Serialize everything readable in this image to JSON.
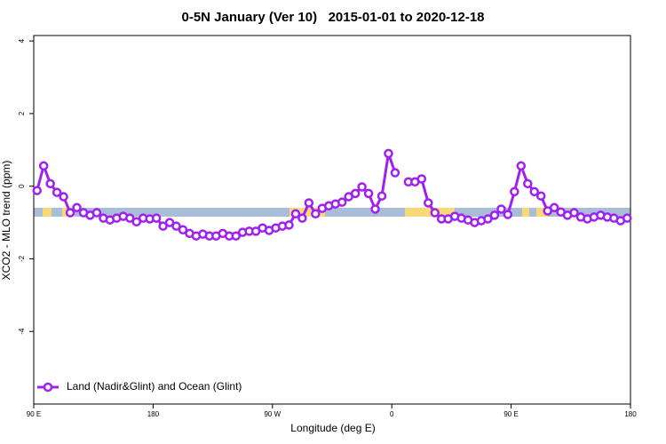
{
  "chart_data": {
    "type": "line",
    "title": "0-5N January (Ver 10)   2015-01-01 to 2020-12-18",
    "xlabel": "Longitude (deg E)",
    "ylabel": "XCO2 - MLO trend (ppm)",
    "x": [
      92.5,
      97.5,
      102.5,
      107.5,
      112.5,
      117.5,
      122.5,
      127.5,
      132.5,
      137.5,
      142.5,
      147.5,
      152.5,
      157.5,
      162.5,
      167.5,
      172.5,
      177.5,
      182.5,
      187.5,
      192.5,
      197.5,
      202.5,
      207.5,
      212.5,
      217.5,
      222.5,
      227.5,
      232.5,
      237.5,
      242.5,
      247.5,
      252.5,
      257.5,
      262.5,
      267.5,
      272.5,
      277.5,
      282.5,
      287.5,
      292.5,
      297.5,
      302.5,
      307.5,
      312.5,
      317.5,
      322.5,
      327.5,
      332.5,
      337.5,
      342.5,
      347.5,
      352.5,
      357.5,
      362.5,
      367.5,
      372.5,
      377.5,
      382.5,
      387.5,
      392.5,
      397.5,
      402.5,
      407.5,
      412.5,
      417.5,
      422.5,
      427.5,
      432.5,
      437.5,
      442.5,
      447.5,
      452.5,
      457.5,
      462.5,
      467.5,
      472.5,
      477.5,
      482.5,
      487.5,
      492.5,
      497.5,
      502.5,
      507.5,
      512.5,
      517.5,
      522.5,
      527.5,
      532.5,
      537.5
    ],
    "series": [
      {
        "name": "Land (Nadir&Glint) and Ocean (Glint)",
        "color": "#a020f0",
        "values": [
          -0.12,
          0.56,
          0.07,
          -0.17,
          -0.29,
          -0.73,
          -0.59,
          -0.73,
          -0.8,
          -0.73,
          -0.88,
          -0.93,
          -0.88,
          -0.83,
          -0.88,
          -0.98,
          -0.88,
          -0.9,
          -0.88,
          -1.1,
          -1.0,
          -1.1,
          -1.2,
          -1.3,
          -1.37,
          -1.32,
          -1.37,
          -1.37,
          -1.3,
          -1.37,
          -1.37,
          -1.27,
          -1.24,
          -1.24,
          -1.15,
          -1.22,
          -1.15,
          -1.1,
          -1.07,
          -0.76,
          -0.88,
          -0.46,
          -0.76,
          -0.61,
          -0.54,
          -0.49,
          -0.44,
          -0.29,
          -0.2,
          -0.02,
          -0.2,
          -0.63,
          -0.27,
          0.9,
          0.37,
          null,
          0.12,
          0.12,
          0.2,
          -0.46,
          -0.73,
          -0.9,
          -0.9,
          -0.83,
          -0.88,
          -0.93,
          -1.0,
          -0.95,
          -0.9,
          -0.8,
          -0.63,
          -0.78,
          -0.15,
          0.56,
          0.07,
          -0.15,
          -0.27,
          -0.68,
          -0.59,
          -0.71,
          -0.8,
          -0.73,
          -0.85,
          -0.9,
          -0.85,
          -0.8,
          -0.85,
          -0.88,
          -0.95,
          -0.88
        ]
      }
    ],
    "xlim": [
      90,
      540
    ],
    "xticks": [
      {
        "value": 90,
        "label": "90 E"
      },
      {
        "value": 180,
        "label": "180"
      },
      {
        "value": 270,
        "label": "90 W"
      },
      {
        "value": 360,
        "label": "0"
      },
      {
        "value": 450,
        "label": "90 E"
      },
      {
        "value": 540,
        "label": "180"
      }
    ],
    "ylim": [
      -6,
      4.15
    ],
    "yticks": [
      4,
      2,
      0,
      -2,
      -4
    ],
    "legend": "bottomleft"
  }
}
